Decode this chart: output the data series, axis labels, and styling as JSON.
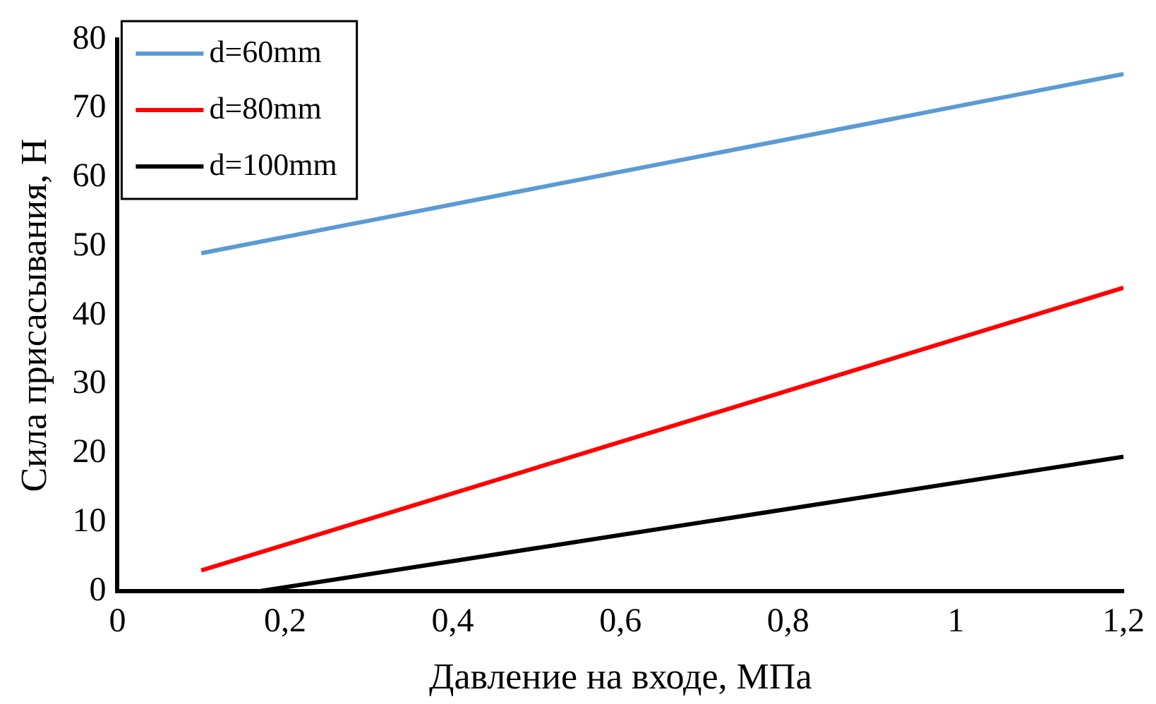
{
  "chart_data": {
    "type": "line",
    "xlabel": "Давление на входе, МПа",
    "ylabel": "Сила присасывания, Н",
    "xlim": [
      0,
      1.2
    ],
    "xticks": [
      0,
      {
        "value": 0.2,
        "label": "0,2"
      },
      {
        "value": 0.4,
        "label": "0,4"
      },
      {
        "value": 0.6,
        "label": "0,6"
      },
      {
        "value": 0.8,
        "label": "0,8"
      },
      1,
      {
        "value": 1.2,
        "label": "1,2"
      }
    ],
    "ylim": [
      0,
      80
    ],
    "yticks": [
      0,
      10,
      20,
      30,
      40,
      50,
      60,
      70,
      80
    ],
    "grid": false,
    "legend": "top left",
    "marker": "none",
    "line_style": "solid",
    "series": [
      {
        "name": "d=60mm",
        "color": "#5b9bd5",
        "x": [
          0.1,
          1.2
        ],
        "values": [
          49,
          75
        ]
      },
      {
        "name": "d=80mm",
        "color": "#ff0000",
        "x": [
          0.1,
          1.2
        ],
        "values": [
          3,
          44
        ]
      },
      {
        "name": "d=100mm",
        "color": "#000000",
        "x": [
          0.17,
          1.2
        ],
        "values": [
          0,
          19.5
        ]
      }
    ]
  }
}
